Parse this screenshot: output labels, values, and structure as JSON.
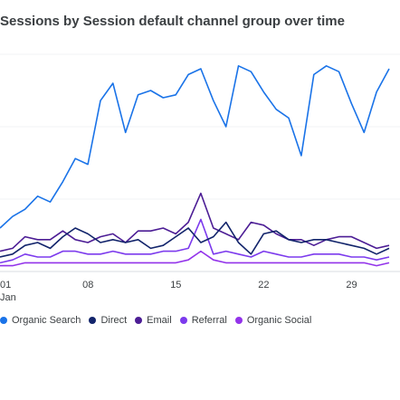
{
  "chart_data": {
    "type": "line",
    "title": "Sessions by Session default channel group over time",
    "x_ticks": [
      "01",
      "08",
      "15",
      "22",
      "29"
    ],
    "x_month": "Jan",
    "grid": true,
    "legend_position": "bottom",
    "series": [
      {
        "name": "Organic Search",
        "color": "#1a73e8",
        "values": [
          30,
          38,
          43,
          52,
          48,
          62,
          78,
          74,
          118,
          130,
          96,
          122,
          125,
          120,
          122,
          136,
          140,
          118,
          100,
          142,
          138,
          124,
          112,
          106,
          80,
          136,
          142,
          138,
          116,
          96,
          124,
          140
        ]
      },
      {
        "name": "Direct",
        "color": "#12246b",
        "values": [
          10,
          12,
          18,
          20,
          16,
          24,
          30,
          26,
          20,
          22,
          20,
          22,
          16,
          18,
          24,
          30,
          20,
          24,
          34,
          20,
          12,
          26,
          28,
          22,
          20,
          22,
          22,
          20,
          18,
          16,
          12,
          16
        ]
      },
      {
        "name": "Email",
        "color": "#4c1d95",
        "values": [
          14,
          16,
          24,
          22,
          22,
          28,
          22,
          20,
          24,
          26,
          20,
          28,
          28,
          30,
          26,
          34,
          54,
          30,
          26,
          22,
          34,
          32,
          26,
          22,
          22,
          18,
          22,
          24,
          24,
          20,
          16,
          18
        ]
      },
      {
        "name": "Referral",
        "color": "#7c3aed",
        "values": [
          6,
          8,
          12,
          10,
          10,
          14,
          14,
          12,
          12,
          14,
          12,
          12,
          12,
          14,
          14,
          16,
          36,
          12,
          14,
          12,
          10,
          14,
          12,
          10,
          10,
          12,
          12,
          12,
          10,
          10,
          8,
          10
        ]
      },
      {
        "name": "Organic Social",
        "color": "#9333ea",
        "values": [
          4,
          4,
          6,
          6,
          6,
          6,
          6,
          6,
          6,
          6,
          6,
          6,
          6,
          6,
          6,
          8,
          14,
          8,
          6,
          6,
          6,
          6,
          6,
          6,
          6,
          6,
          6,
          6,
          6,
          6,
          4,
          6
        ]
      }
    ]
  }
}
